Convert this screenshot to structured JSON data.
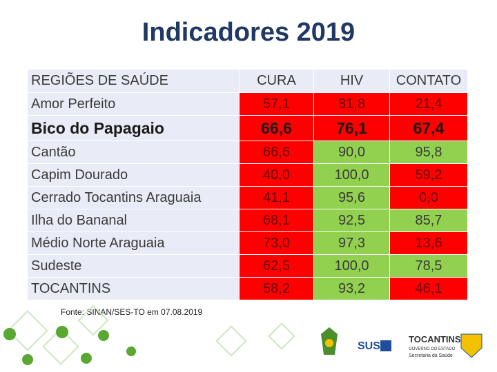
{
  "title": "Indicadores 2019",
  "table": {
    "header": [
      "REGIÕES DE SAÚDE",
      "CURA",
      "HIV",
      "CONTATO"
    ],
    "rows": [
      [
        "Amor Perfeito",
        "57,1",
        "81,8",
        "21,4"
      ],
      [
        "Bico do Papagaio",
        "66,6",
        "76,1",
        "67,4"
      ],
      [
        "Cantão",
        "66,6",
        "90,0",
        "95,8"
      ],
      [
        "Capim Dourado",
        "40,0",
        "100,0",
        "59,2"
      ],
      [
        "Cerrado Tocantins Araguaia",
        "41,1",
        "95,6",
        "0,0"
      ],
      [
        "Ilha do Bananal",
        "68,1",
        "92,5",
        "85,7"
      ],
      [
        "Médio Norte Araguaia",
        "73,0",
        "97,3",
        "13,6"
      ],
      [
        "Sudeste",
        "62,5",
        "100,0",
        "78,5"
      ],
      [
        "TOCANTINS",
        "58,2",
        "93,2",
        "46,1"
      ]
    ],
    "colors": [
      [
        "#ff0000",
        "#ff0000",
        "#ff0000"
      ],
      [
        "#ff0000",
        "#ff0000",
        "#ff0000"
      ],
      [
        "#ff0000",
        "#92d050",
        "#92d050"
      ],
      [
        "#ff0000",
        "#92d050",
        "#ff0000"
      ],
      [
        "#ff0000",
        "#92d050",
        "#ff0000"
      ],
      [
        "#ff0000",
        "#92d050",
        "#92d050"
      ],
      [
        "#ff0000",
        "#92d050",
        "#ff0000"
      ],
      [
        "#ff0000",
        "#92d050",
        "#92d050"
      ],
      [
        "#ff0000",
        "#92d050",
        "#ff0000"
      ]
    ]
  },
  "source": "Fonte: SINAN/SES-TO em 07.08.2019",
  "logos": {
    "sus": "SUS",
    "state": "TOCANTINS",
    "government": "GOVERNO DO ESTADO",
    "department": "Secretaria da Saúde"
  }
}
